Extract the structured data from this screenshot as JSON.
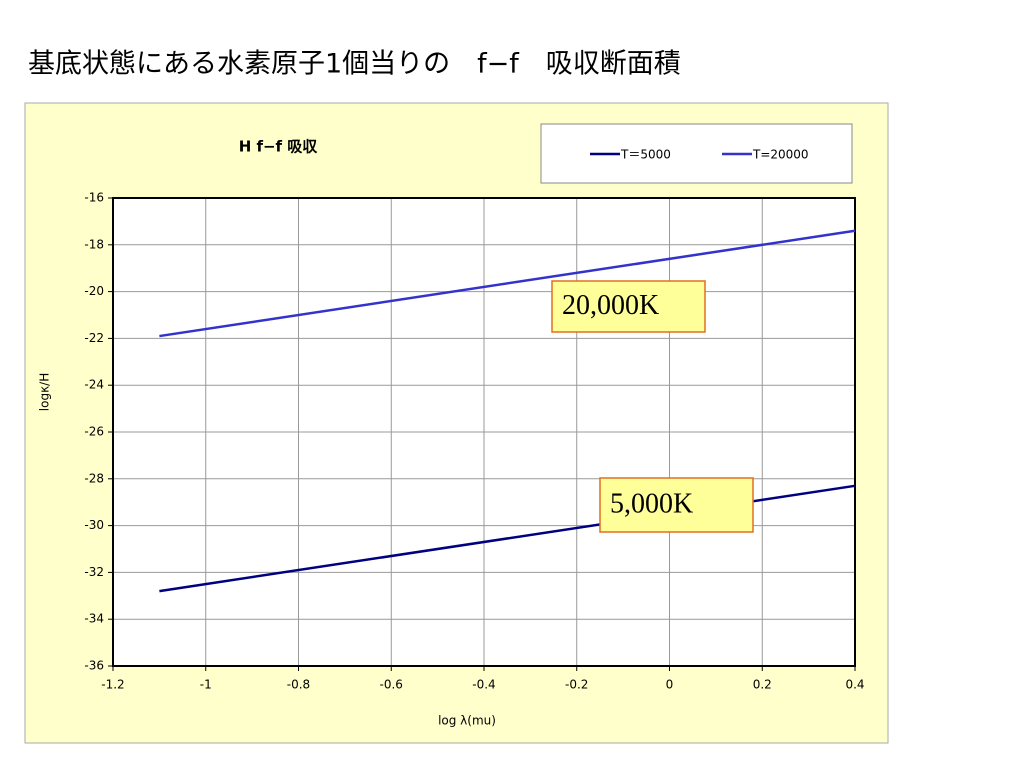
{
  "title": "基底状態にある水素原子1個当りの　f−f　吸収断面積",
  "chart_data": {
    "type": "line",
    "title": "H f−f 吸収",
    "x_label": "log λ(mu)",
    "y_label": "logκ/H",
    "x": [
      -1.1,
      0.4
    ],
    "series": [
      {
        "name": "T＝5000",
        "color": "#000080",
        "values": [
          -32.8,
          -28.3
        ]
      },
      {
        "name": "T=20000",
        "color": "#3333cc",
        "values": [
          -21.9,
          -17.4
        ]
      }
    ],
    "xlim": [
      -1.2,
      0.4
    ],
    "xticks": [
      -1.2,
      -1,
      -0.8,
      -0.6,
      -0.4,
      -0.2,
      0,
      0.2,
      0.4
    ],
    "ylim": [
      -36,
      -16
    ],
    "yticks": [
      -16,
      -18,
      -20,
      -22,
      -24,
      -26,
      -28,
      -30,
      -32,
      -34,
      -36
    ],
    "grid": true,
    "annotations": [
      "20,000K",
      "5,000K"
    ]
  }
}
